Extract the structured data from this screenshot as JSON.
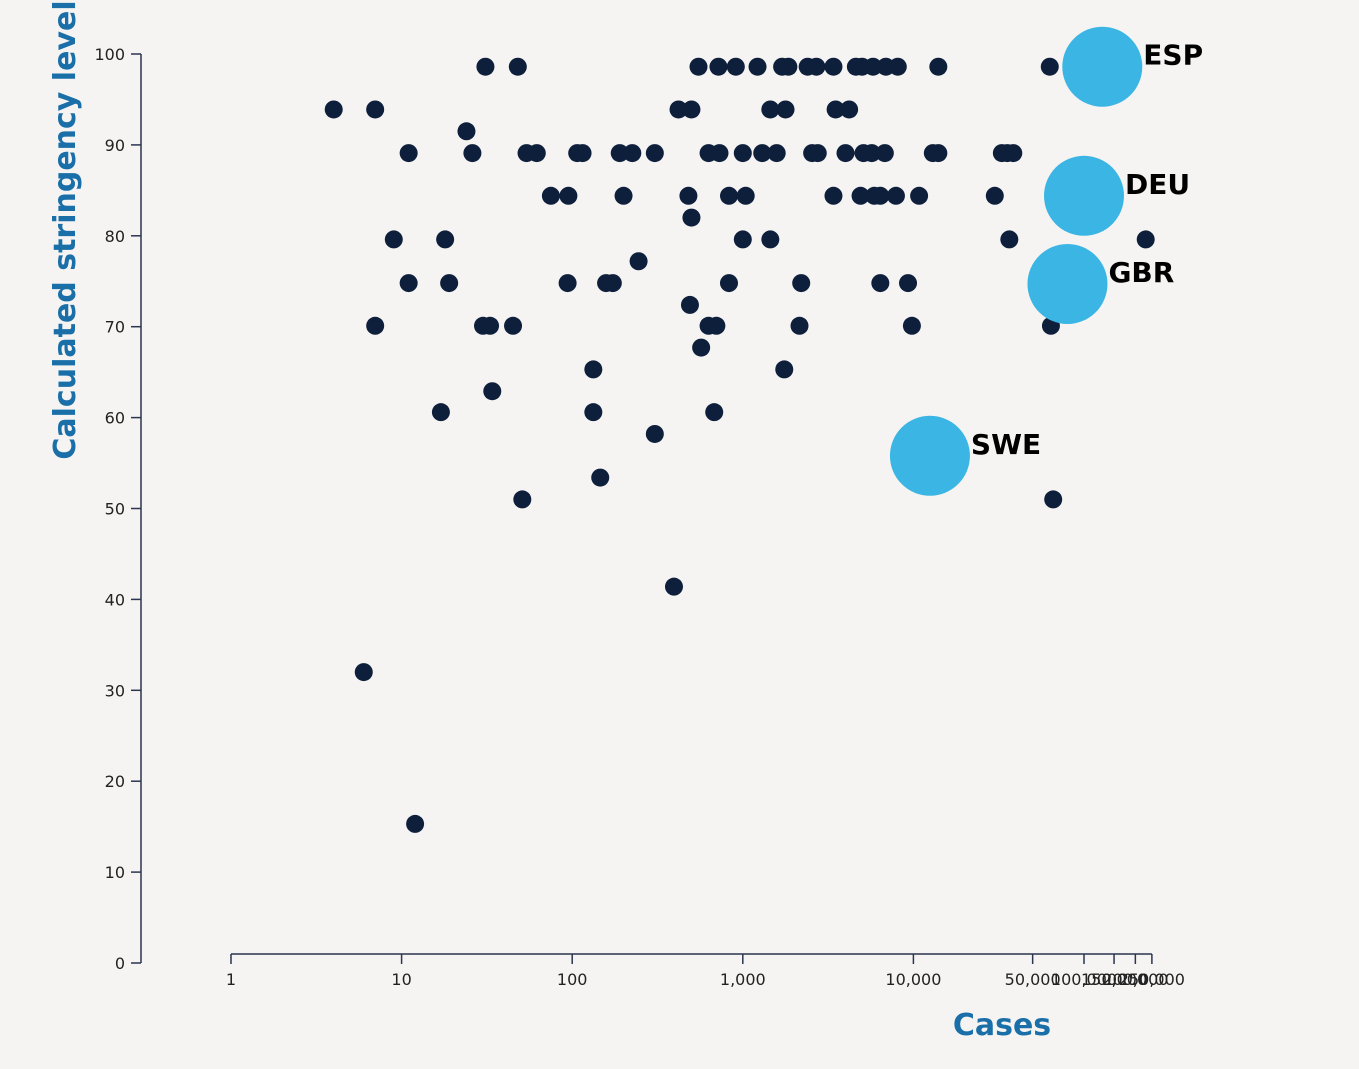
{
  "chart_data": {
    "type": "scatter",
    "title": "",
    "xlabel": "Cases",
    "ylabel": "Calculated stringency level",
    "x_scale": "log",
    "xlim": [
      1,
      250000
    ],
    "ylim": [
      0,
      100
    ],
    "x_ticks": [
      {
        "value": 1,
        "label": "1"
      },
      {
        "value": 10,
        "label": "10"
      },
      {
        "value": 100,
        "label": "100"
      },
      {
        "value": 1000,
        "label": "1,000"
      },
      {
        "value": 10000,
        "label": "10,000"
      },
      {
        "value": 50000,
        "label": "50,000"
      },
      {
        "value": 100000,
        "label": "100,000"
      },
      {
        "value": 150000,
        "label": "150,000"
      },
      {
        "value": 200000,
        "label": "200,000"
      },
      {
        "value": 250000,
        "label": "250,000"
      }
    ],
    "y_ticks": [
      0,
      10,
      20,
      30,
      40,
      50,
      60,
      70,
      80,
      90,
      100
    ],
    "grid": false,
    "colors": {
      "point": "#0e1f3b",
      "highlight": "#3bb5e3",
      "axis_title": "#1a6fa8"
    },
    "highlighted": [
      {
        "label": "ESP",
        "x": 128000,
        "y": 98.6
      },
      {
        "label": "DEU",
        "x": 100000,
        "y": 84.4
      },
      {
        "label": "GBR",
        "x": 80000,
        "y": 74.7
      },
      {
        "label": "SWE",
        "x": 12500,
        "y": 55.8
      }
    ],
    "points": [
      [
        4,
        93.9
      ],
      [
        7,
        93.9
      ],
      [
        31,
        98.6
      ],
      [
        48,
        98.6
      ],
      [
        550,
        98.6
      ],
      [
        720,
        98.6
      ],
      [
        910,
        98.6
      ],
      [
        1220,
        98.6
      ],
      [
        1700,
        98.6
      ],
      [
        1850,
        98.6
      ],
      [
        2400,
        98.6
      ],
      [
        2700,
        98.6
      ],
      [
        3400,
        98.6
      ],
      [
        4600,
        98.6
      ],
      [
        5000,
        98.6
      ],
      [
        5800,
        98.6
      ],
      [
        6900,
        98.6
      ],
      [
        8100,
        98.6
      ],
      [
        14000,
        98.6
      ],
      [
        63000,
        98.6
      ],
      [
        88000,
        98.6
      ],
      [
        120000,
        98.6
      ],
      [
        420,
        93.9
      ],
      [
        500,
        93.9
      ],
      [
        1450,
        93.9
      ],
      [
        1780,
        93.9
      ],
      [
        3500,
        93.9
      ],
      [
        4200,
        93.9
      ],
      [
        24,
        91.5
      ],
      [
        11,
        89.1
      ],
      [
        26,
        89.1
      ],
      [
        54,
        89.1
      ],
      [
        62,
        89.1
      ],
      [
        107,
        89.1
      ],
      [
        115,
        89.1
      ],
      [
        190,
        89.1
      ],
      [
        225,
        89.1
      ],
      [
        305,
        89.1
      ],
      [
        630,
        89.1
      ],
      [
        730,
        89.1
      ],
      [
        1000,
        89.1
      ],
      [
        1300,
        89.1
      ],
      [
        1580,
        89.1
      ],
      [
        2550,
        89.1
      ],
      [
        2750,
        89.1
      ],
      [
        4000,
        89.1
      ],
      [
        5100,
        89.1
      ],
      [
        5700,
        89.1
      ],
      [
        6800,
        89.1
      ],
      [
        13000,
        89.1
      ],
      [
        14000,
        89.1
      ],
      [
        33000,
        89.1
      ],
      [
        35500,
        89.1
      ],
      [
        38500,
        89.1
      ],
      [
        75,
        84.4
      ],
      [
        95,
        84.4
      ],
      [
        200,
        84.4
      ],
      [
        480,
        84.4
      ],
      [
        830,
        84.4
      ],
      [
        1040,
        84.4
      ],
      [
        3400,
        84.4
      ],
      [
        4900,
        84.4
      ],
      [
        5900,
        84.4
      ],
      [
        6400,
        84.4
      ],
      [
        7900,
        84.4
      ],
      [
        10800,
        84.4
      ],
      [
        30000,
        84.4
      ],
      [
        500,
        82
      ],
      [
        9,
        79.6
      ],
      [
        18,
        79.6
      ],
      [
        1000,
        79.6
      ],
      [
        1450,
        79.6
      ],
      [
        36500,
        79.6
      ],
      [
        230000,
        79.6
      ],
      [
        245,
        77.2
      ],
      [
        11,
        74.8
      ],
      [
        19,
        74.8
      ],
      [
        94,
        74.8
      ],
      [
        158,
        74.8
      ],
      [
        173,
        74.8
      ],
      [
        830,
        74.8
      ],
      [
        2200,
        74.8
      ],
      [
        6400,
        74.8
      ],
      [
        9300,
        74.8
      ],
      [
        490,
        72.4
      ],
      [
        7,
        70.1
      ],
      [
        30,
        70.1
      ],
      [
        33,
        70.1
      ],
      [
        45,
        70.1
      ],
      [
        630,
        70.1
      ],
      [
        700,
        70.1
      ],
      [
        2150,
        70.1
      ],
      [
        9800,
        70.1
      ],
      [
        64000,
        70.1
      ],
      [
        570,
        67.7
      ],
      [
        133,
        65.3
      ],
      [
        1750,
        65.3
      ],
      [
        34,
        62.9
      ],
      [
        17,
        60.6
      ],
      [
        133,
        60.6
      ],
      [
        680,
        60.6
      ],
      [
        305,
        58.2
      ],
      [
        146,
        53.4
      ],
      [
        51,
        51
      ],
      [
        66000,
        51
      ],
      [
        395,
        41.4
      ],
      [
        6,
        32
      ],
      [
        12,
        15.3
      ]
    ]
  }
}
